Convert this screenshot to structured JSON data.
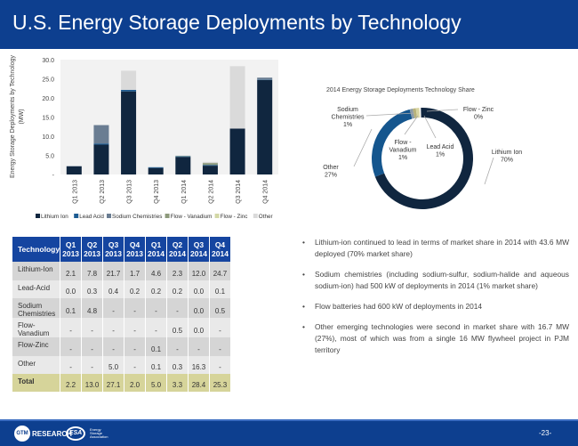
{
  "title": "U.S. Energy Storage Deployments by Technology",
  "chart_data": [
    {
      "type": "bar",
      "stacked": true,
      "title": "",
      "ylabel": "Energy Storage Deployments by Technology (MW)",
      "ylim": [
        0,
        30
      ],
      "yticks": [
        "-",
        "5.0",
        "10.0",
        "15.0",
        "20.0",
        "25.0",
        "30.0"
      ],
      "grid": false,
      "legend_placement": "bottom",
      "categories": [
        "Q1 2013",
        "Q2 2013",
        "Q3 2013",
        "Q4 2013",
        "Q1 2014",
        "Q2 2014",
        "Q3 2014",
        "Q4 2014"
      ],
      "series": [
        {
          "name": "Lithium Ion",
          "color": "#10263f",
          "values": [
            2.1,
            7.8,
            21.7,
            1.7,
            4.6,
            2.3,
            12.0,
            24.7
          ]
        },
        {
          "name": "Lead Acid",
          "color": "#1d5c92",
          "values": [
            0.0,
            0.3,
            0.4,
            0.2,
            0.2,
            0.2,
            0.0,
            0.1
          ]
        },
        {
          "name": "Sodium Chemistries",
          "color": "#6a7d92",
          "values": [
            0.1,
            4.8,
            0,
            0,
            0,
            0,
            0.0,
            0.5
          ]
        },
        {
          "name": "Flow - Vanadium",
          "color": "#8d9a7c",
          "values": [
            0,
            0,
            0,
            0,
            0,
            0.5,
            0.0,
            0
          ]
        },
        {
          "name": "Flow - Zinc",
          "color": "#d3d8a6",
          "values": [
            0,
            0,
            0,
            0,
            0.1,
            0,
            0,
            0
          ]
        },
        {
          "name": "Other",
          "color": "#dadada",
          "values": [
            0,
            0,
            5.0,
            0,
            0.1,
            0.3,
            16.3,
            0
          ]
        }
      ]
    },
    {
      "type": "pie",
      "donut": true,
      "title": "2014 Energy Storage Deployments Technology Share",
      "slices": [
        {
          "label": "Lithium Ion",
          "value": 70,
          "text": "70%",
          "color": "#10263f"
        },
        {
          "label": "Other",
          "value": 27,
          "text": "27%",
          "color": "#15568e"
        },
        {
          "label": "Sodium Chemistries",
          "value": 1,
          "text": "1%",
          "color": "#8a9aa8"
        },
        {
          "label": "Flow - Vanadium",
          "value": 1,
          "text": "1%",
          "color": "#b8b27a"
        },
        {
          "label": "Lead Acid",
          "value": 1,
          "text": "1%",
          "color": "#d8d4a0"
        },
        {
          "label": "Flow - Zinc",
          "value": 0,
          "text": "0%",
          "color": "#e8e4c0"
        }
      ]
    }
  ],
  "table": {
    "header": [
      "Technology",
      "Q1 2013",
      "Q2 2013",
      "Q3 2013",
      "Q4 2013",
      "Q1 2014",
      "Q2 2014",
      "Q3 2014",
      "Q4 2014"
    ],
    "rows": [
      [
        "Lithium-Ion",
        "2.1",
        "7.8",
        "21.7",
        "1.7",
        "4.6",
        "2.3",
        "12.0",
        "24.7"
      ],
      [
        "Lead-Acid",
        "0.0",
        "0.3",
        "0.4",
        "0.2",
        "0.2",
        "0.2",
        "0.0",
        "0.1"
      ],
      [
        "Sodium Chemistries",
        "0.1",
        "4.8",
        "-",
        "-",
        "-",
        "-",
        "0.0",
        "0.5"
      ],
      [
        "Flow-Vanadium",
        "-",
        "-",
        "-",
        "-",
        "-",
        "0.5",
        "0.0",
        "-"
      ],
      [
        "Flow-Zinc",
        "-",
        "-",
        "-",
        "-",
        "0.1",
        "-",
        "-",
        "-"
      ],
      [
        "Other",
        "-",
        "-",
        "5.0",
        "-",
        "0.1",
        "0.3",
        "16.3",
        "-"
      ]
    ],
    "total": [
      "Total",
      "2.2",
      "13.0",
      "27.1",
      "2.0",
      "5.0",
      "3.3",
      "28.4",
      "25.3"
    ]
  },
  "bullets": [
    "Lithium-ion continued to lead in terms of market share in 2014 with 43.6 MW deployed (70% market share)",
    "Sodium chemistries (including sodium-sulfur, sodium-halide and aqueous sodium-ion) had 500 kW of deployments in 2014 (1% market share)",
    "Flow batteries had 600 kW of deployments in 2014",
    "Other emerging technologies were second in market share with 16.7 MW (27%), most of which was from a single 16 MW flywheel project in PJM territory"
  ],
  "footer": {
    "gtm_logo": "GTM RESEARCH",
    "esa_logo": "ESA Energy Storage Association",
    "page": "-23-"
  }
}
